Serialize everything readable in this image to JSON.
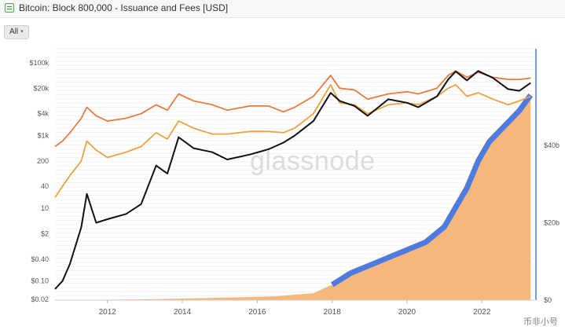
{
  "header": {
    "title": "Bitcoin: Block 800,000 - Issuance and Fees [USD]",
    "icon": "chart-icon"
  },
  "controls": {
    "range_label": "All",
    "range_caret": "▾"
  },
  "watermark": "glassnode",
  "corner_logo": "币非小号",
  "colors": {
    "price": "#111111",
    "issuance_usd": "#e87b3d",
    "fees_usd": "#efa03f",
    "cumulative_fees_fill": "#f5b77a",
    "cumulative_fees_band": "#4f7be0",
    "right_axis_line": "#4f7be0",
    "grid": "#ececec"
  },
  "chart_data": {
    "type": "line",
    "xlabel": "",
    "ylabel": "",
    "x_ticks": [
      "2012",
      "2014",
      "2016",
      "2018",
      "2020",
      "2022"
    ],
    "xlim": [
      2010.6,
      2023.4
    ],
    "y_left_scale": "log",
    "y_left_ticks": [
      "$100k",
      "$20k",
      "$4k",
      "$1k",
      "200",
      "40",
      "10",
      "$2",
      "$0.40",
      "$0.10",
      "$0.02"
    ],
    "y_left_tick_values": [
      100000,
      20000,
      4000,
      1000,
      200,
      40,
      10,
      2,
      0.4,
      0.1,
      0.02
    ],
    "y_right_scale": "linear",
    "y_right_ticks": [
      "$0",
      "$20b",
      "$40b"
    ],
    "y_right_tick_values": [
      0,
      20,
      40
    ],
    "y_right_lim": [
      0,
      65
    ],
    "series": [
      {
        "kind": "line",
        "axis": "left",
        "color_key": "issuance_usd",
        "points": [
          [
            2010.6,
            500
          ],
          [
            2010.8,
            700
          ],
          [
            2011.0,
            1200
          ],
          [
            2011.3,
            3000
          ],
          [
            2011.45,
            6000
          ],
          [
            2011.7,
            3500
          ],
          [
            2012.0,
            2500
          ],
          [
            2012.5,
            3000
          ],
          [
            2012.9,
            4000
          ],
          [
            2013.3,
            7000
          ],
          [
            2013.6,
            5000
          ],
          [
            2013.9,
            14000
          ],
          [
            2014.3,
            9000
          ],
          [
            2014.8,
            7000
          ],
          [
            2015.2,
            5000
          ],
          [
            2015.8,
            6500
          ],
          [
            2016.3,
            6500
          ],
          [
            2016.7,
            4500
          ],
          [
            2017.0,
            6000
          ],
          [
            2017.5,
            12000
          ],
          [
            2017.96,
            45000
          ],
          [
            2018.2,
            20000
          ],
          [
            2018.6,
            18000
          ],
          [
            2018.95,
            10000
          ],
          [
            2019.5,
            14000
          ],
          [
            2020.0,
            16000
          ],
          [
            2020.3,
            14000
          ],
          [
            2020.8,
            20000
          ],
          [
            2021.1,
            45000
          ],
          [
            2021.3,
            60000
          ],
          [
            2021.6,
            40000
          ],
          [
            2021.9,
            55000
          ],
          [
            2022.3,
            40000
          ],
          [
            2022.7,
            35000
          ],
          [
            2023.0,
            35000
          ],
          [
            2023.3,
            38000
          ]
        ]
      },
      {
        "kind": "line",
        "axis": "left",
        "color_key": "fees_usd",
        "points": [
          [
            2010.6,
            20
          ],
          [
            2010.8,
            40
          ],
          [
            2011.0,
            80
          ],
          [
            2011.3,
            200
          ],
          [
            2011.45,
            700
          ],
          [
            2011.7,
            400
          ],
          [
            2012.0,
            250
          ],
          [
            2012.5,
            350
          ],
          [
            2012.9,
            500
          ],
          [
            2013.3,
            1200
          ],
          [
            2013.6,
            800
          ],
          [
            2013.9,
            2500
          ],
          [
            2014.3,
            1600
          ],
          [
            2014.8,
            1100
          ],
          [
            2015.2,
            1100
          ],
          [
            2015.8,
            1300
          ],
          [
            2016.3,
            1300
          ],
          [
            2016.7,
            1200
          ],
          [
            2017.0,
            1600
          ],
          [
            2017.5,
            4000
          ],
          [
            2017.96,
            25000
          ],
          [
            2018.2,
            8000
          ],
          [
            2018.6,
            7000
          ],
          [
            2018.95,
            4000
          ],
          [
            2019.5,
            7000
          ],
          [
            2020.0,
            8000
          ],
          [
            2020.3,
            7000
          ],
          [
            2020.8,
            12000
          ],
          [
            2021.1,
            20000
          ],
          [
            2021.3,
            25000
          ],
          [
            2021.6,
            12000
          ],
          [
            2021.9,
            15000
          ],
          [
            2022.3,
            10000
          ],
          [
            2022.7,
            7000
          ],
          [
            2023.0,
            9000
          ],
          [
            2023.3,
            12000
          ]
        ]
      },
      {
        "kind": "line",
        "axis": "left",
        "color_key": "price",
        "points": [
          [
            2010.6,
            0.06
          ],
          [
            2010.8,
            0.1
          ],
          [
            2011.0,
            0.3
          ],
          [
            2011.3,
            3
          ],
          [
            2011.45,
            25
          ],
          [
            2011.7,
            4
          ],
          [
            2012.0,
            5
          ],
          [
            2012.5,
            7
          ],
          [
            2012.9,
            13
          ],
          [
            2013.3,
            150
          ],
          [
            2013.6,
            90
          ],
          [
            2013.9,
            900
          ],
          [
            2014.3,
            450
          ],
          [
            2014.8,
            350
          ],
          [
            2015.2,
            220
          ],
          [
            2015.8,
            300
          ],
          [
            2016.3,
            420
          ],
          [
            2016.7,
            640
          ],
          [
            2017.0,
            1000
          ],
          [
            2017.5,
            2500
          ],
          [
            2017.96,
            15000
          ],
          [
            2018.2,
            9000
          ],
          [
            2018.6,
            6500
          ],
          [
            2018.95,
            3500
          ],
          [
            2019.5,
            10000
          ],
          [
            2020.0,
            8000
          ],
          [
            2020.3,
            6000
          ],
          [
            2020.8,
            12000
          ],
          [
            2021.1,
            35000
          ],
          [
            2021.3,
            58000
          ],
          [
            2021.6,
            33000
          ],
          [
            2021.9,
            60000
          ],
          [
            2022.3,
            38000
          ],
          [
            2022.7,
            19000
          ],
          [
            2023.0,
            17000
          ],
          [
            2023.3,
            28000
          ]
        ]
      },
      {
        "kind": "area",
        "axis": "right",
        "color_key": "cumulative_fees_fill",
        "points": [
          [
            2010.6,
            0
          ],
          [
            2013.0,
            0.2
          ],
          [
            2015.0,
            0.6
          ],
          [
            2016.5,
            1.0
          ],
          [
            2017.5,
            1.8
          ],
          [
            2018.0,
            4.0
          ],
          [
            2018.5,
            7.0
          ],
          [
            2019.0,
            9.0
          ],
          [
            2019.5,
            11.0
          ],
          [
            2020.0,
            13.0
          ],
          [
            2020.5,
            15.0
          ],
          [
            2021.0,
            19.0
          ],
          [
            2021.3,
            24.0
          ],
          [
            2021.6,
            29.0
          ],
          [
            2021.9,
            36.0
          ],
          [
            2022.2,
            41.0
          ],
          [
            2022.6,
            45.0
          ],
          [
            2023.0,
            49.0
          ],
          [
            2023.3,
            53.0
          ]
        ]
      }
    ]
  }
}
